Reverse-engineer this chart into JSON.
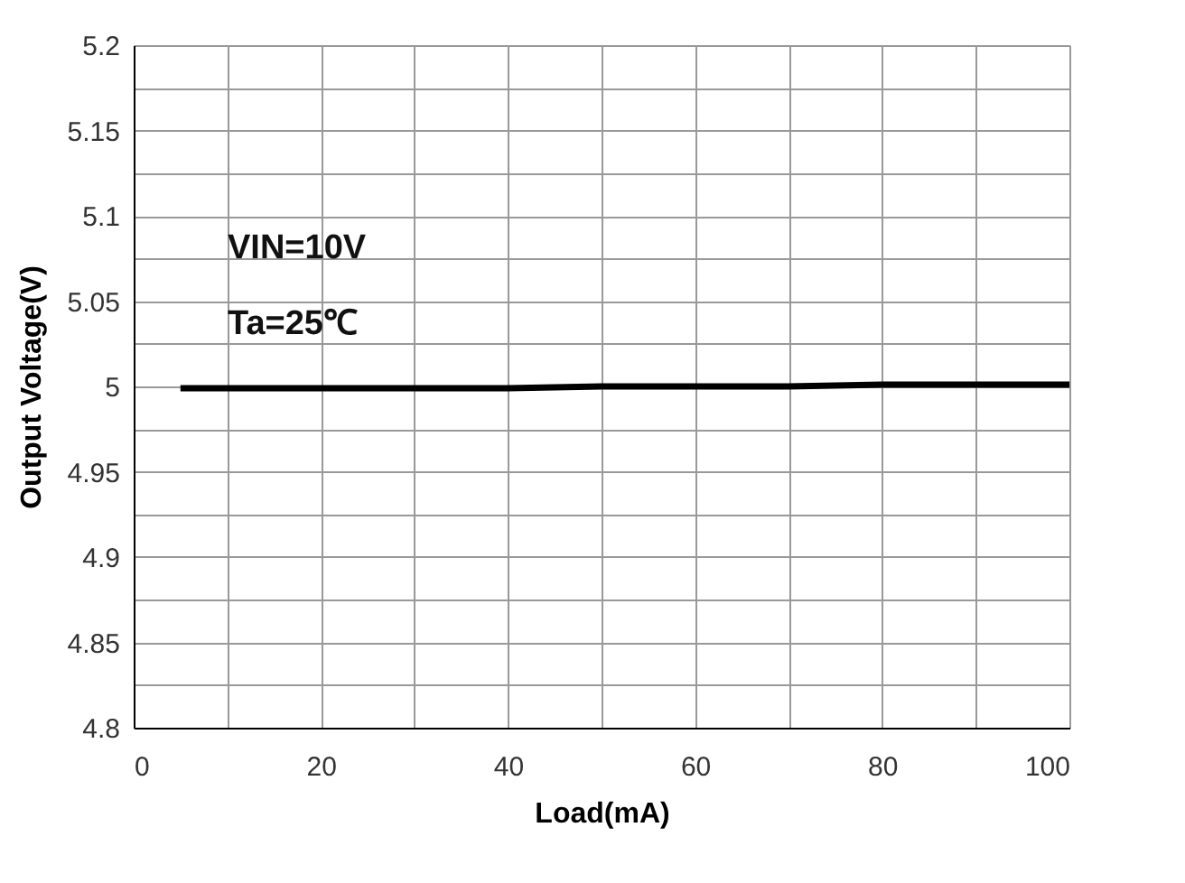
{
  "chart_data": {
    "type": "line",
    "xlabel": "Load(mA)",
    "ylabel": "Output Voltage(V)",
    "annotations": [
      "VIN=10V",
      "Ta=25℃"
    ],
    "series": [
      {
        "color": "#000000",
        "x": [
          5,
          20,
          40,
          50,
          60,
          70,
          80,
          100
        ],
        "values": [
          4.999,
          4.999,
          4.999,
          5.0,
          5.0,
          5.0,
          5.001,
          5.001
        ]
      }
    ],
    "xlim": [
      0,
      100
    ],
    "ylim": [
      4.8,
      5.2
    ],
    "xticks": [
      0,
      {
        "value": 10,
        "label": null
      },
      20,
      {
        "value": 30,
        "label": null
      },
      40,
      {
        "value": 50,
        "label": null
      },
      60,
      {
        "value": 70,
        "label": null
      },
      80,
      {
        "value": 90,
        "label": null
      },
      100
    ],
    "yticks": [
      4.8,
      {
        "value": 4.825,
        "label": null
      },
      4.85,
      {
        "value": 4.875,
        "label": null
      },
      4.9,
      {
        "value": 4.925,
        "label": null
      },
      4.95,
      {
        "value": 4.975,
        "label": null
      },
      5,
      {
        "value": 5.025,
        "label": null
      },
      5.05,
      {
        "value": 5.075,
        "label": null
      },
      5.1,
      {
        "value": 5.125,
        "label": null
      },
      5.15,
      {
        "value": 5.175,
        "label": null
      },
      5.2
    ],
    "grid": true,
    "marker": "none",
    "line_style": "solid"
  }
}
